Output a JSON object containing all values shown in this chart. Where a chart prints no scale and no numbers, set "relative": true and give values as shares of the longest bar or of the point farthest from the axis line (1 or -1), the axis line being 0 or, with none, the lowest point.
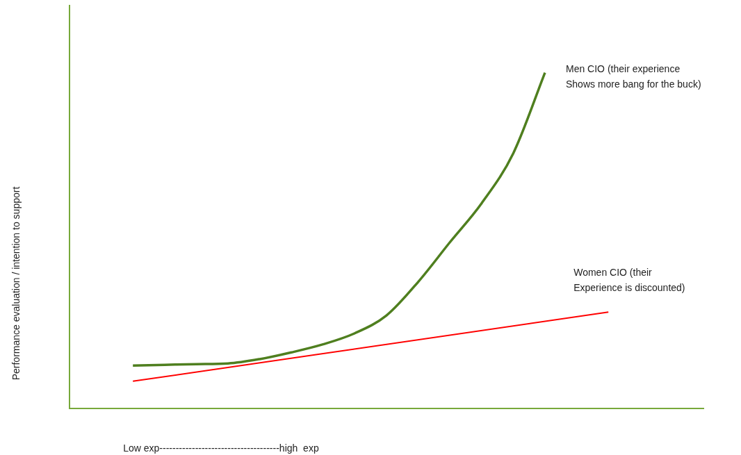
{
  "chart_data": {
    "type": "line",
    "relative": true,
    "xlabel": "Low exp-------------------------------------high  exp",
    "ylabel": "Performance evaluation / intention to support",
    "legend": false,
    "marker": "none",
    "categories": [
      null,
      null,
      null,
      null,
      null,
      null,
      null,
      null,
      null,
      null,
      null,
      null,
      null,
      null,
      null,
      null,
      null,
      null,
      null,
      null,
      null
    ],
    "series": [
      {
        "name": "Men CIO (their experience\nShows more bang for the buck)",
        "color": "#4f7f1f",
        "values": [
          null,
          null,
          0.128,
          0.13,
          0.132,
          0.134,
          0.147,
          0.167,
          0.191,
          0.224,
          0.277,
          0.377,
          0.495,
          0.611,
          0.76,
          1,
          null,
          null,
          null,
          null,
          null
        ]
      },
      {
        "name": "Women CIO (their\nExperience is discounted)",
        "color": "#ff0000",
        "values": [
          null,
          null,
          0.081,
          null,
          null,
          null,
          null,
          null,
          null,
          null,
          null,
          null,
          null,
          null,
          null,
          null,
          null,
          0.287,
          null,
          null,
          null
        ]
      }
    ]
  }
}
